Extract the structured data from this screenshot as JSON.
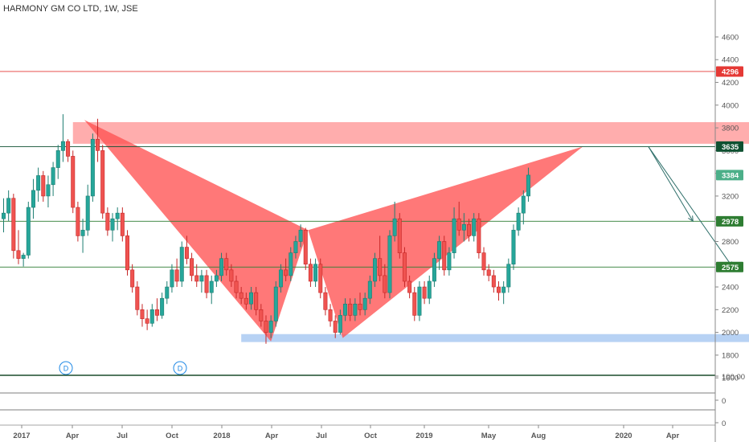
{
  "chart_data": {
    "type": "candlestick",
    "title": "HARMONY GM CO LTD, 1W, JSE",
    "x_ticks": [
      "2017",
      "Apr",
      "Jul",
      "Oct",
      "2018",
      "Apr",
      "Jul",
      "Oct",
      "2019",
      "May",
      "Aug",
      "2020",
      "Apr"
    ],
    "y_ticks": [
      1600,
      1800,
      2000,
      2200,
      2400,
      2600,
      2800,
      3000,
      3200,
      3400,
      3600,
      3800,
      4000,
      4200,
      4400,
      4600
    ],
    "y_range": [
      1580,
      4720
    ],
    "indicator_ticks": [
      "100.00",
      "0",
      "0"
    ],
    "price_levels": [
      {
        "value": 4296,
        "label": "4296",
        "color": "#e53935"
      },
      {
        "value": 3635,
        "label": "3635",
        "color": "#0f5132"
      },
      {
        "value": 3384,
        "label": "3384",
        "color": "#4caf89"
      },
      {
        "value": 2978,
        "label": "2978",
        "color": "#2e7d32"
      },
      {
        "value": 2575,
        "label": "2575",
        "color": "#2e7d32"
      }
    ],
    "dividend_markers": [
      "D",
      "D"
    ],
    "candles": [
      {
        "o": 3000,
        "h": 3180,
        "l": 2880,
        "c": 3050
      },
      {
        "o": 3050,
        "h": 3250,
        "l": 2980,
        "c": 3180
      },
      {
        "o": 3180,
        "h": 3220,
        "l": 2650,
        "c": 2720
      },
      {
        "o": 2720,
        "h": 2900,
        "l": 2600,
        "c": 2650
      },
      {
        "o": 2650,
        "h": 2700,
        "l": 2580,
        "c": 2680
      },
      {
        "o": 2680,
        "h": 3150,
        "l": 2650,
        "c": 3100
      },
      {
        "o": 3100,
        "h": 3350,
        "l": 3000,
        "c": 3250
      },
      {
        "o": 3250,
        "h": 3450,
        "l": 3150,
        "c": 3380
      },
      {
        "o": 3380,
        "h": 3420,
        "l": 3150,
        "c": 3200
      },
      {
        "o": 3200,
        "h": 3380,
        "l": 3100,
        "c": 3300
      },
      {
        "o": 3300,
        "h": 3500,
        "l": 3200,
        "c": 3450
      },
      {
        "o": 3450,
        "h": 3650,
        "l": 3350,
        "c": 3600
      },
      {
        "o": 3600,
        "h": 3920,
        "l": 3500,
        "c": 3680
      },
      {
        "o": 3680,
        "h": 3700,
        "l": 3500,
        "c": 3550
      },
      {
        "o": 3550,
        "h": 3600,
        "l": 3050,
        "c": 3100
      },
      {
        "o": 3100,
        "h": 3150,
        "l": 2800,
        "c": 2850
      },
      {
        "o": 2850,
        "h": 3000,
        "l": 2700,
        "c": 2900
      },
      {
        "o": 2900,
        "h": 3300,
        "l": 2850,
        "c": 3200
      },
      {
        "o": 3200,
        "h": 3750,
        "l": 3150,
        "c": 3700
      },
      {
        "o": 3700,
        "h": 3880,
        "l": 3500,
        "c": 3600
      },
      {
        "o": 3600,
        "h": 3650,
        "l": 3000,
        "c": 3050
      },
      {
        "o": 3050,
        "h": 3100,
        "l": 2850,
        "c": 2900
      },
      {
        "o": 2900,
        "h": 3050,
        "l": 2800,
        "c": 3000
      },
      {
        "o": 3000,
        "h": 3100,
        "l": 2900,
        "c": 3050
      },
      {
        "o": 3050,
        "h": 3100,
        "l": 2800,
        "c": 2850
      },
      {
        "o": 2850,
        "h": 2900,
        "l": 2500,
        "c": 2550
      },
      {
        "o": 2550,
        "h": 2600,
        "l": 2350,
        "c": 2400
      },
      {
        "o": 2400,
        "h": 2450,
        "l": 2150,
        "c": 2200
      },
      {
        "o": 2200,
        "h": 2250,
        "l": 2050,
        "c": 2120
      },
      {
        "o": 2120,
        "h": 2200,
        "l": 2020,
        "c": 2080
      },
      {
        "o": 2080,
        "h": 2250,
        "l": 2050,
        "c": 2200
      },
      {
        "o": 2200,
        "h": 2300,
        "l": 2100,
        "c": 2150
      },
      {
        "o": 2150,
        "h": 2350,
        "l": 2120,
        "c": 2300
      },
      {
        "o": 2300,
        "h": 2450,
        "l": 2250,
        "c": 2400
      },
      {
        "o": 2400,
        "h": 2600,
        "l": 2350,
        "c": 2550
      },
      {
        "o": 2550,
        "h": 2650,
        "l": 2400,
        "c": 2450
      },
      {
        "o": 2450,
        "h": 2800,
        "l": 2400,
        "c": 2750
      },
      {
        "o": 2750,
        "h": 2850,
        "l": 2600,
        "c": 2650
      },
      {
        "o": 2650,
        "h": 2700,
        "l": 2450,
        "c": 2500
      },
      {
        "o": 2500,
        "h": 2600,
        "l": 2400,
        "c": 2450
      },
      {
        "o": 2450,
        "h": 2550,
        "l": 2350,
        "c": 2500
      },
      {
        "o": 2500,
        "h": 2550,
        "l": 2300,
        "c": 2350
      },
      {
        "o": 2350,
        "h": 2500,
        "l": 2250,
        "c": 2450
      },
      {
        "o": 2450,
        "h": 2550,
        "l": 2400,
        "c": 2500
      },
      {
        "o": 2500,
        "h": 2700,
        "l": 2450,
        "c": 2650
      },
      {
        "o": 2650,
        "h": 2700,
        "l": 2500,
        "c": 2550
      },
      {
        "o": 2550,
        "h": 2600,
        "l": 2400,
        "c": 2450
      },
      {
        "o": 2450,
        "h": 2500,
        "l": 2300,
        "c": 2350
      },
      {
        "o": 2350,
        "h": 2400,
        "l": 2250,
        "c": 2300
      },
      {
        "o": 2300,
        "h": 2350,
        "l": 2200,
        "c": 2250
      },
      {
        "o": 2250,
        "h": 2400,
        "l": 2200,
        "c": 2350
      },
      {
        "o": 2350,
        "h": 2400,
        "l": 2150,
        "c": 2200
      },
      {
        "o": 2200,
        "h": 2250,
        "l": 2050,
        "c": 2100
      },
      {
        "o": 2100,
        "h": 2150,
        "l": 1900,
        "c": 2000
      },
      {
        "o": 2000,
        "h": 2150,
        "l": 1950,
        "c": 2100
      },
      {
        "o": 2100,
        "h": 2450,
        "l": 2050,
        "c": 2400
      },
      {
        "o": 2400,
        "h": 2600,
        "l": 2350,
        "c": 2550
      },
      {
        "o": 2550,
        "h": 2650,
        "l": 2450,
        "c": 2500
      },
      {
        "o": 2500,
        "h": 2750,
        "l": 2450,
        "c": 2700
      },
      {
        "o": 2700,
        "h": 2850,
        "l": 2650,
        "c": 2800
      },
      {
        "o": 2800,
        "h": 2950,
        "l": 2750,
        "c": 2900
      },
      {
        "o": 2900,
        "h": 2920,
        "l": 2550,
        "c": 2600
      },
      {
        "o": 2600,
        "h": 2650,
        "l": 2400,
        "c": 2450
      },
      {
        "o": 2450,
        "h": 2650,
        "l": 2400,
        "c": 2600
      },
      {
        "o": 2600,
        "h": 2650,
        "l": 2300,
        "c": 2350
      },
      {
        "o": 2350,
        "h": 2400,
        "l": 2150,
        "c": 2200
      },
      {
        "o": 2200,
        "h": 2250,
        "l": 2050,
        "c": 2100
      },
      {
        "o": 2100,
        "h": 2150,
        "l": 1950,
        "c": 2000
      },
      {
        "o": 2000,
        "h": 2200,
        "l": 1980,
        "c": 2150
      },
      {
        "o": 2150,
        "h": 2300,
        "l": 2100,
        "c": 2250
      },
      {
        "o": 2250,
        "h": 2300,
        "l": 2100,
        "c": 2150
      },
      {
        "o": 2150,
        "h": 2300,
        "l": 2100,
        "c": 2250
      },
      {
        "o": 2250,
        "h": 2350,
        "l": 2150,
        "c": 2200
      },
      {
        "o": 2200,
        "h": 2350,
        "l": 2150,
        "c": 2300
      },
      {
        "o": 2300,
        "h": 2500,
        "l": 2250,
        "c": 2450
      },
      {
        "o": 2450,
        "h": 2700,
        "l": 2400,
        "c": 2650
      },
      {
        "o": 2650,
        "h": 2850,
        "l": 2450,
        "c": 2500
      },
      {
        "o": 2500,
        "h": 2600,
        "l": 2300,
        "c": 2350
      },
      {
        "o": 2350,
        "h": 2900,
        "l": 2300,
        "c": 2850
      },
      {
        "o": 2850,
        "h": 3150,
        "l": 2800,
        "c": 3000
      },
      {
        "o": 3000,
        "h": 3050,
        "l": 2650,
        "c": 2700
      },
      {
        "o": 2700,
        "h": 2750,
        "l": 2400,
        "c": 2450
      },
      {
        "o": 2450,
        "h": 2500,
        "l": 2300,
        "c": 2350
      },
      {
        "o": 2350,
        "h": 2400,
        "l": 2100,
        "c": 2150
      },
      {
        "o": 2150,
        "h": 2450,
        "l": 2100,
        "c": 2400
      },
      {
        "o": 2400,
        "h": 2450,
        "l": 2250,
        "c": 2300
      },
      {
        "o": 2300,
        "h": 2500,
        "l": 2250,
        "c": 2450
      },
      {
        "o": 2450,
        "h": 2700,
        "l": 2400,
        "c": 2650
      },
      {
        "o": 2650,
        "h": 2850,
        "l": 2550,
        "c": 2800
      },
      {
        "o": 2800,
        "h": 2850,
        "l": 2500,
        "c": 2550
      },
      {
        "o": 2550,
        "h": 2750,
        "l": 2500,
        "c": 2700
      },
      {
        "o": 2700,
        "h": 3100,
        "l": 2650,
        "c": 3000
      },
      {
        "o": 3000,
        "h": 3150,
        "l": 2850,
        "c": 2900
      },
      {
        "o": 2900,
        "h": 3050,
        "l": 2800,
        "c": 2950
      },
      {
        "o": 2950,
        "h": 3000,
        "l": 2800,
        "c": 2850
      },
      {
        "o": 2850,
        "h": 3050,
        "l": 2800,
        "c": 3000
      },
      {
        "o": 3000,
        "h": 3050,
        "l": 2650,
        "c": 2700
      },
      {
        "o": 2700,
        "h": 2750,
        "l": 2500,
        "c": 2550
      },
      {
        "o": 2550,
        "h": 2600,
        "l": 2450,
        "c": 2500
      },
      {
        "o": 2500,
        "h": 2550,
        "l": 2350,
        "c": 2400
      },
      {
        "o": 2400,
        "h": 2450,
        "l": 2280,
        "c": 2350
      },
      {
        "o": 2350,
        "h": 2450,
        "l": 2250,
        "c": 2400
      },
      {
        "o": 2400,
        "h": 2650,
        "l": 2350,
        "c": 2600
      },
      {
        "o": 2600,
        "h": 2950,
        "l": 2550,
        "c": 2900
      },
      {
        "o": 2900,
        "h": 3100,
        "l": 2850,
        "c": 3050
      },
      {
        "o": 3050,
        "h": 3250,
        "l": 2950,
        "c": 3200
      },
      {
        "o": 3200,
        "h": 3450,
        "l": 3150,
        "c": 3384
      }
    ],
    "harmonic_pattern": {
      "points": [
        {
          "t": 16.3,
          "p": 3870
        },
        {
          "t": 54.0,
          "p": 1920
        },
        {
          "t": 61.5,
          "p": 2900
        },
        {
          "t": 68.5,
          "p": 1950
        },
        {
          "t": 117.0,
          "p": 3635
        }
      ],
      "color": "#ff5252"
    },
    "resistance_zone": {
      "t_start": 14.0,
      "t_end": 156.0,
      "p_low": 3660,
      "p_high": 3850,
      "color": "#ff8a8a"
    },
    "support_zone": {
      "t_start": 48.0,
      "t_end": 151.5,
      "p_low": 1915,
      "p_high": 1985,
      "color": "#9fc3f0"
    },
    "projection_arrows": [
      {
        "from": {
          "t": 127.0,
          "p": 3635
        },
        "to": {
          "t": 136.0,
          "p": 2978
        }
      },
      {
        "from": {
          "t": 127.0,
          "p": 3635
        },
        "to": {
          "t": 144.0,
          "p": 2575
        }
      }
    ]
  }
}
